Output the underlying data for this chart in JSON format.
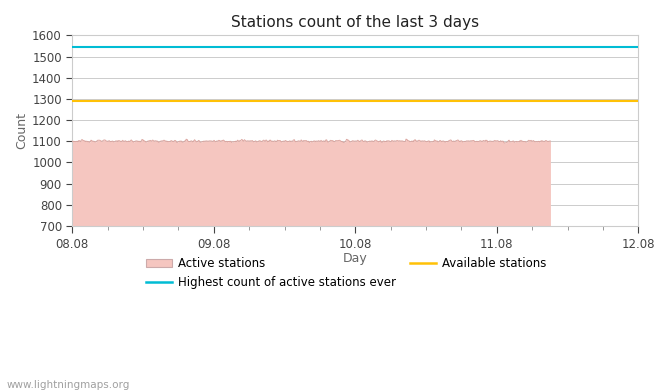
{
  "title": "Stations count of the last 3 days",
  "xlabel": "Day",
  "ylabel": "Count",
  "ylim": [
    700,
    1600
  ],
  "yticks": [
    700,
    800,
    900,
    1000,
    1100,
    1200,
    1300,
    1400,
    1500,
    1600
  ],
  "x_start": 0,
  "x_end": 4,
  "xtick_positions": [
    0,
    1,
    2,
    3,
    4
  ],
  "xtick_labels": [
    "08.08",
    "09.08",
    "10.08",
    "11.08",
    "12.08"
  ],
  "active_stations_value": 1100,
  "highest_ever_value": 1545,
  "available_stations_value": 1290,
  "active_fill_color": "#f5c6c0",
  "active_line_color": "#d9a09a",
  "highest_ever_color": "#00bcd4",
  "available_color": "#ffc107",
  "grid_color": "#cccccc",
  "background_color": "#ffffff",
  "watermark": "www.lightningmaps.org",
  "active_fill_end_x": 3.38,
  "title_fontsize": 11,
  "axis_fontsize": 9,
  "tick_fontsize": 8.5,
  "legend_fontsize": 8.5,
  "watermark_fontsize": 7.5
}
